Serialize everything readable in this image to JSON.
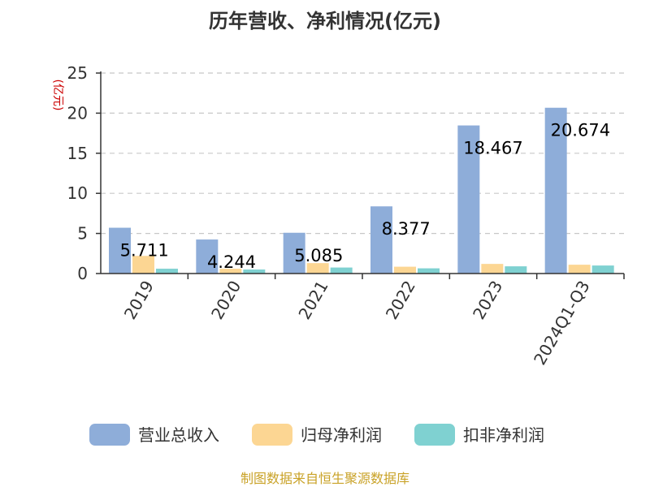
{
  "chart_data": {
    "type": "bar",
    "title": "历年营收、净利情况(亿元)",
    "xlabel": "",
    "ylabel": "(亿元)",
    "ylim": [
      0,
      25
    ],
    "yticks": [
      0,
      5,
      10,
      15,
      20,
      25
    ],
    "grid": true,
    "legend_position": "bottom",
    "categories": [
      "2019",
      "2020",
      "2021",
      "2022",
      "2023",
      "2024Q1-Q3"
    ],
    "series": [
      {
        "name": "营业总收入",
        "color": "#8eadd9",
        "values": [
          5.711,
          4.244,
          5.085,
          8.377,
          18.467,
          20.674
        ],
        "labels": [
          "5.711",
          "4.244",
          "5.085",
          "8.377",
          "18.467",
          "20.674"
        ]
      },
      {
        "name": "归母净利润",
        "color": "#fcd693",
        "values": [
          2.2,
          0.6,
          1.3,
          0.85,
          1.2,
          1.1
        ]
      },
      {
        "name": "扣非净利润",
        "color": "#7fd1d1",
        "values": [
          0.6,
          0.5,
          0.75,
          0.65,
          0.9,
          1.0
        ]
      }
    ],
    "source": "制图数据来自恒生聚源数据库"
  }
}
